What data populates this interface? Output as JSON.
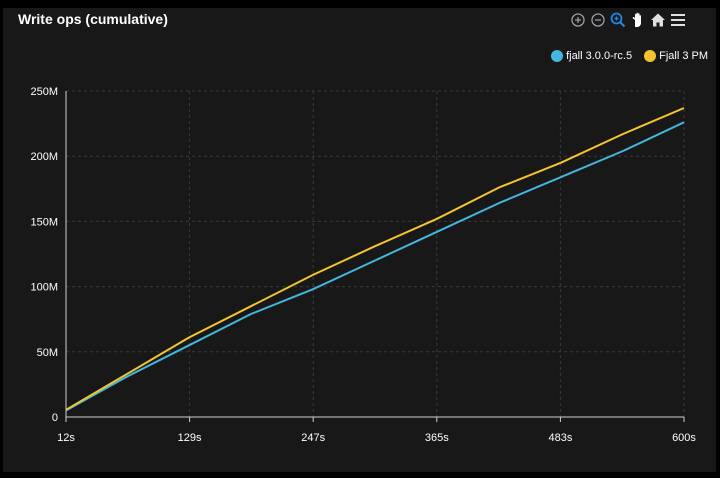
{
  "toolbar": {
    "icons": [
      "zoom-in-icon",
      "zoom-out-icon",
      "selection-zoom-icon",
      "pan-icon",
      "home-icon",
      "menu-icon"
    ]
  },
  "colors": {
    "background": "#181818",
    "grid": "#3a3a3a",
    "axis": "#cfcfcf"
  },
  "chart_data": {
    "type": "line",
    "title": "Write ops (cumulative)",
    "xlabel": "",
    "ylabel": "",
    "x_tick_labels": [
      "12s",
      "129s",
      "247s",
      "365s",
      "483s",
      "600s"
    ],
    "y_tick_labels": [
      "0",
      "50M",
      "100M",
      "150M",
      "200M",
      "250M"
    ],
    "xlim": [
      12,
      600
    ],
    "ylim": [
      0,
      250000000
    ],
    "grid": true,
    "legend_position": "top-right",
    "series": [
      {
        "name": "fjall 3.0.0-rc.5",
        "color": "#43b6dd",
        "x": [
          12,
          70,
          129,
          188,
          247,
          306,
          365,
          424,
          483,
          542,
          600
        ],
        "y": [
          5000000,
          31000000,
          55000000,
          79000000,
          98000000,
          120000000,
          142000000,
          164000000,
          184000000,
          204000000,
          226000000
        ]
      },
      {
        "name": "Fjall 3 PM",
        "color": "#f4c430",
        "x": [
          12,
          70,
          129,
          188,
          247,
          306,
          365,
          424,
          483,
          542,
          600
        ],
        "y": [
          5500000,
          33000000,
          61000000,
          85000000,
          109000000,
          131000000,
          152000000,
          176000000,
          195000000,
          217000000,
          237000000
        ]
      }
    ]
  }
}
